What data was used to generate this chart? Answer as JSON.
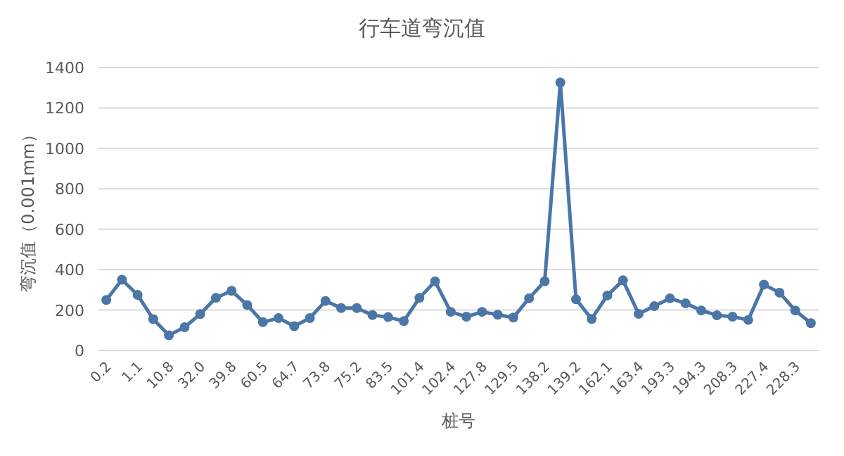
{
  "chart_data": {
    "type": "line",
    "title": "行车道弯沉值",
    "xlabel": "桩号",
    "ylabel": "弯沉值（0.001mm）",
    "categories": [
      "0.2",
      null,
      "1.1",
      null,
      "10.8",
      null,
      "32.0",
      null,
      "39.8",
      null,
      "60.5",
      null,
      "64.7",
      null,
      "73.8",
      null,
      "75.2",
      null,
      "83.5",
      null,
      "101.4",
      null,
      "102.4",
      null,
      "127.8",
      null,
      "129.5",
      null,
      "138.2",
      null,
      "139.2",
      null,
      "162.1",
      null,
      "163.4",
      null,
      "193.3",
      null,
      "194.3",
      null,
      "208.3",
      null,
      "227.4",
      null,
      "228.3",
      null
    ],
    "series": [
      {
        "color": "#4a76a8",
        "values": [
          250,
          350,
          275,
          155,
          75,
          115,
          180,
          260,
          295,
          225,
          140,
          160,
          120,
          160,
          245,
          210,
          210,
          175,
          165,
          145,
          260,
          342,
          191,
          167,
          191,
          177,
          163,
          258,
          342,
          1326,
          253,
          156,
          272,
          347,
          181,
          219,
          258,
          233,
          198,
          174,
          167,
          151,
          326,
          286,
          198,
          135
        ]
      }
    ],
    "ylim": [
      0,
      1400
    ],
    "yticks": [
      0,
      200,
      400,
      600,
      800,
      1000,
      1200,
      1400
    ],
    "grid": "y",
    "marker": "circle",
    "line_style": "solid"
  }
}
